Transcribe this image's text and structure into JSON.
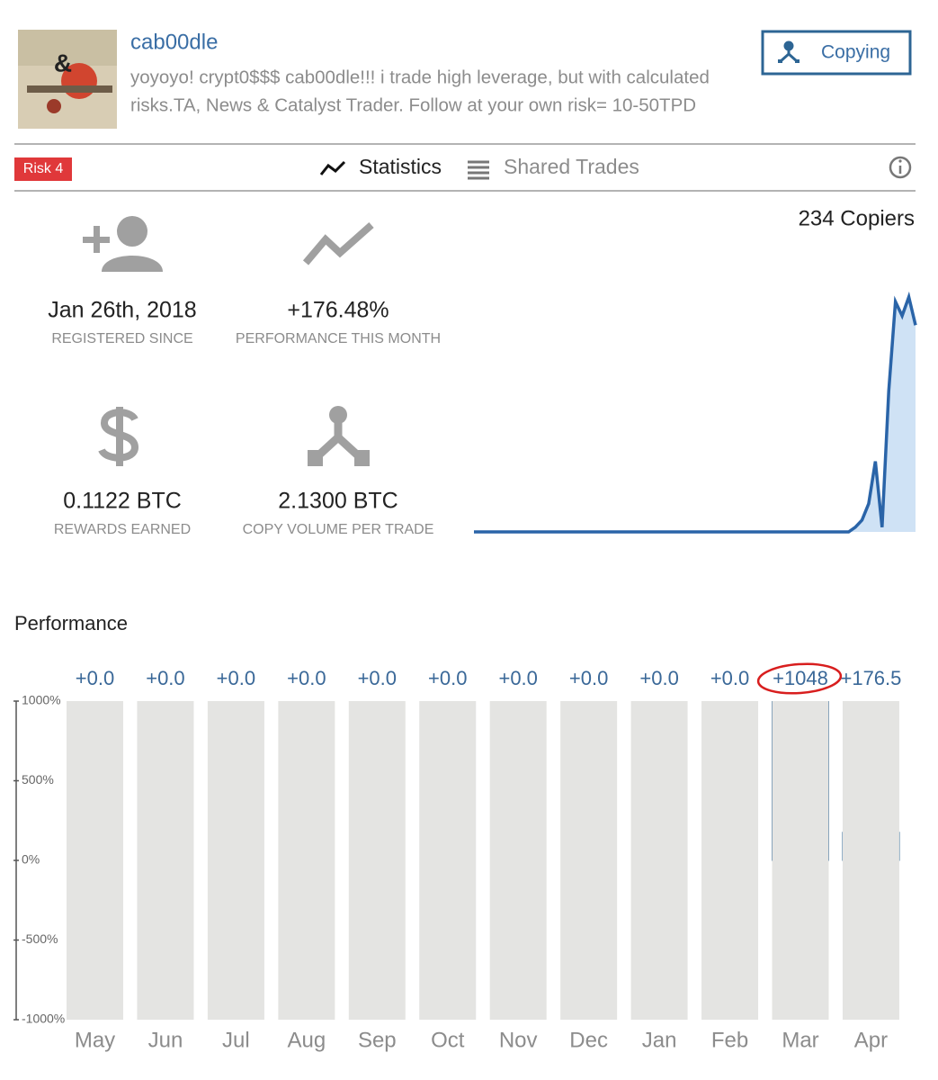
{
  "profile": {
    "name": "cab00dle",
    "bio": [
      "yoyoyo! crypt0$$$ cab00dle!!! i trade high leverage, but with calculated",
      "risks.TA, News & Catalyst Trader. Follow at your own risk= 10-50TPD"
    ],
    "button": "Copying"
  },
  "tabs": {
    "risk": "Risk 4",
    "statistics": "Statistics",
    "shared_trades": "Shared Trades"
  },
  "stats": [
    {
      "value": "Jan 26th, 2018",
      "label": "REGISTERED SINCE"
    },
    {
      "value": "+176.48%",
      "label": "PERFORMANCE THIS MONTH"
    },
    {
      "value": "0.1122 BTC",
      "label": "REWARDS EARNED"
    },
    {
      "value": "2.1300 BTC",
      "label": "COPY VOLUME PER TRADE"
    }
  ],
  "copiers": "234 Copiers",
  "copiers_chart": {
    "type": "line",
    "color": "#2a64a8",
    "fill": "#cfe2f5",
    "ylim": [
      0,
      100
    ],
    "values": [
      0,
      0,
      0,
      0,
      0,
      0,
      0,
      0,
      0,
      0,
      0,
      0,
      0,
      0,
      0,
      0,
      0,
      0,
      0,
      0,
      0,
      0,
      0,
      0,
      0,
      0,
      0,
      0,
      0,
      0,
      0,
      0,
      0,
      0,
      0,
      0,
      0,
      0,
      0,
      0,
      0,
      0,
      0,
      0,
      0,
      0,
      0,
      0,
      0,
      0,
      0,
      0,
      0,
      0,
      0,
      0,
      0,
      2,
      5,
      12,
      30,
      2,
      60,
      98,
      92,
      100,
      88
    ]
  },
  "chart_data": {
    "type": "bar",
    "title": "Performance",
    "categories": [
      "May",
      "Jun",
      "Jul",
      "Aug",
      "Sep",
      "Oct",
      "Nov",
      "Dec",
      "Jan",
      "Feb",
      "Mar",
      "Apr"
    ],
    "values": [
      0,
      0,
      0,
      0,
      0,
      0,
      0,
      0,
      0,
      0,
      1048,
      176.5
    ],
    "value_labels": [
      "+0.0",
      "+0.0",
      "+0.0",
      "+0.0",
      "+0.0",
      "+0.0",
      "+0.0",
      "+0.0",
      "+0.0",
      "+0.0",
      "+1048",
      "+176.5"
    ],
    "ylim": [
      -1000,
      1000
    ],
    "yticks": [
      {
        "value": 1000,
        "label": "1000%"
      },
      {
        "value": 500,
        "label": "500%"
      },
      {
        "value": 0,
        "label": "0%"
      },
      {
        "value": -500,
        "label": "-500%"
      },
      {
        "value": -1000,
        "label": "-1000%"
      }
    ],
    "color": "#2d6594",
    "background_color": "#e4e4e2"
  }
}
